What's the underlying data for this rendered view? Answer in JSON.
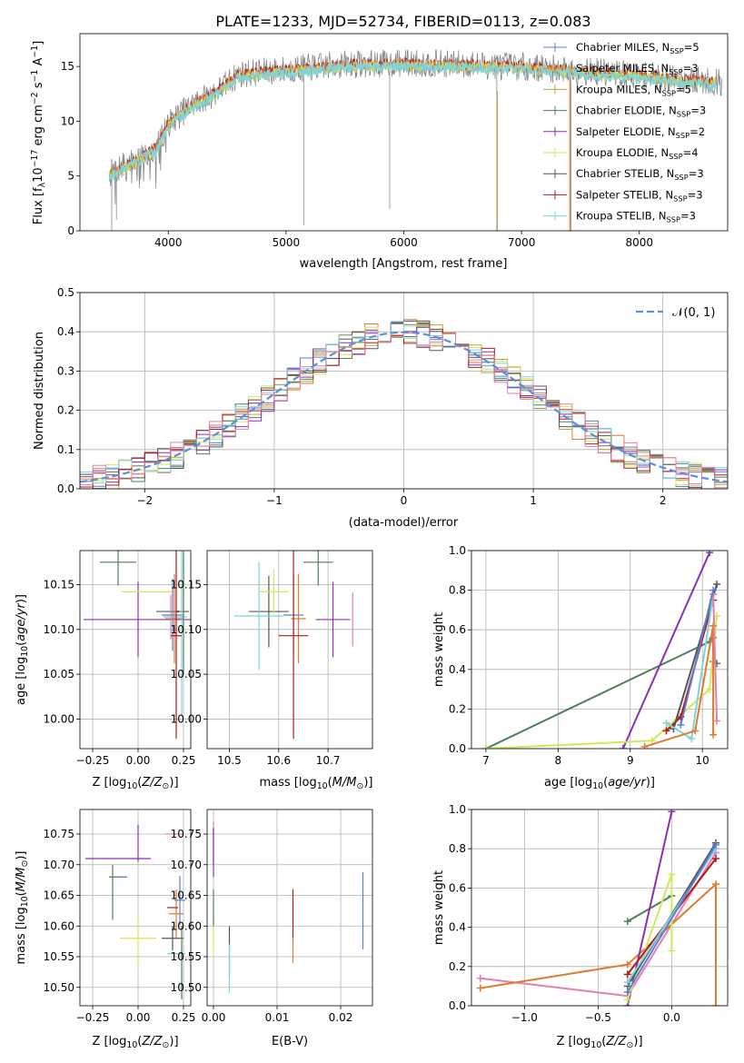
{
  "figure_title": "PLATE=1233, MJD=52734, FIBERID=0113, z=0.083",
  "colors": {
    "ch_miles": "#5b7fd2",
    "sa_miles": "#e07a2f",
    "kr_miles": "#b9a642",
    "ch_elodie": "#4e7f5a",
    "sa_elodie": "#8e2fb3",
    "kr_elodie": "#d0e85a",
    "ch_stelib": "#555555",
    "sa_stelib": "#b21a1a",
    "kr_stelib": "#7fd3dd",
    "pink": "#e57fb0",
    "gray": "#888888",
    "cyan": "#62c8d3",
    "gauss": "#5b8fd6",
    "grid": "#b0b0b0"
  },
  "chart_data": [
    {
      "type": "line",
      "title": "PLATE=1233, MJD=52734, FIBERID=0113, z=0.083",
      "xlabel": "wavelength [Angstrom, rest frame]",
      "ylabel": "Flux [f_λ10^-17 erg cm^-2 s^-1 A^-1]",
      "xlim": [
        3250,
        8750
      ],
      "ylim": [
        0,
        18
      ],
      "xticks": [
        4000,
        5000,
        6000,
        7000,
        8000
      ],
      "yticks": [
        0,
        5,
        10,
        15
      ],
      "grid": false,
      "legend_position": "right",
      "legend": [
        "Chabrier MILES, N_SSP=5",
        "Salpeter MILES, N_SSP=3",
        "Kroupa MILES, N_SSP=5",
        "Chabrier ELODIE, N_SSP=3",
        "Salpeter ELODIE, N_SSP=2",
        "Kroupa ELODIE, N_SSP=4",
        "Chabrier STELIB, N_SSP=3",
        "Salpeter STELIB, N_SSP=3",
        "Kroupa STELIB, N_SSP=3"
      ],
      "continuum": {
        "x": [
          3500,
          3700,
          3900,
          4000,
          4200,
          4400,
          4600,
          5000,
          5500,
          6000,
          6500,
          7000,
          7500,
          8000,
          8500,
          8700
        ],
        "y": [
          5.2,
          6.3,
          7.6,
          9.8,
          11.5,
          12.6,
          14.3,
          14.7,
          15.2,
          15.3,
          15.2,
          15.0,
          14.6,
          14.2,
          13.7,
          13.6
        ]
      }
    },
    {
      "type": "histogram",
      "xlabel": "(data-model)/error",
      "ylabel": "Normed distribution",
      "xlim": [
        -2.5,
        2.5
      ],
      "ylim": [
        0,
        0.5
      ],
      "xticks": [
        -2,
        -1,
        0,
        1,
        2
      ],
      "yticks": [
        0.0,
        0.1,
        0.2,
        0.3,
        0.4,
        0.5
      ],
      "grid": true,
      "legend_position": "top-right",
      "reference": {
        "name": "𝒩(0, 1)",
        "mu": 0,
        "sigma": 1
      },
      "bin_width": 0.1
    },
    {
      "type": "scatter",
      "xlabel": "Z [log10(Z/Z_⊙)]",
      "ylabel": "age  [log10(age/yr)]",
      "xlim": [
        -0.32,
        0.29
      ],
      "ylim": [
        9.967,
        10.188
      ],
      "xticks": [
        -0.25,
        0.0,
        0.25
      ],
      "yticks": [
        10.0,
        10.05,
        10.1,
        10.15
      ],
      "points": [
        {
          "x": -0.11,
          "y": 10.175,
          "xerr": 0.1,
          "yerr": 0.0,
          "color": "ch_elodie"
        },
        {
          "x": -0.11,
          "y": 10.175,
          "xerr": 0.0,
          "yerr": 0.026,
          "color": "ch_elodie"
        },
        {
          "x": 0.0,
          "y": 10.111,
          "xerr": 0.3,
          "yerr": 0.042,
          "color": "sa_elodie"
        },
        {
          "x": 0.05,
          "y": 10.142,
          "xerr": 0.14,
          "yerr": 0.0,
          "color": "kr_elodie"
        },
        {
          "x": 0.25,
          "y": 10.142,
          "xerr": 0.0,
          "yerr": 0.04,
          "color": "kr_elodie"
        },
        {
          "x": 0.19,
          "y": 10.12,
          "xerr": 0.09,
          "yerr": 0.0,
          "color": "ch_stelib"
        },
        {
          "x": 0.22,
          "y": 10.12,
          "xerr": 0.0,
          "yerr": 0.0,
          "color": "ch_stelib"
        },
        {
          "x": 0.19,
          "y": 10.116,
          "xerr": 0.06,
          "yerr": 0.04,
          "color": "ch_miles"
        },
        {
          "x": 0.18,
          "y": 10.114,
          "xerr": 0.04,
          "yerr": 0.025,
          "color": "pink"
        },
        {
          "x": 0.2,
          "y": 10.112,
          "xerr": 0.05,
          "yerr": 0.05,
          "color": "sa_miles"
        },
        {
          "x": 0.21,
          "y": 10.114,
          "xerr": 0.06,
          "yerr": 0.0,
          "color": "kr_stelib"
        },
        {
          "x": 0.24,
          "y": 10.114,
          "xerr": 0.0,
          "yerr": 0.11,
          "color": "kr_stelib"
        },
        {
          "x": 0.25,
          "y": 10.12,
          "xerr": 0.0,
          "yerr": 0.07,
          "color": "ch_elodie"
        },
        {
          "x": 0.21,
          "y": 10.093,
          "xerr": 0.03,
          "yerr": 0.0,
          "color": "sa_stelib"
        },
        {
          "x": 0.21,
          "y": 10.093,
          "xerr": 0.0,
          "yerr": 0.115,
          "color": "sa_stelib"
        }
      ]
    },
    {
      "type": "scatter",
      "xlabel": "mass [log10(M/M_⊙)]",
      "ylabel": "",
      "xlim": [
        10.455,
        10.79
      ],
      "ylim": [
        9.967,
        10.188
      ],
      "xticks": [
        10.5,
        10.6,
        10.7
      ],
      "yticks": [
        10.0,
        10.05,
        10.1,
        10.15
      ],
      "points": [
        {
          "x": 10.58,
          "y": 10.12,
          "xerr": 0.04,
          "yerr": 0.04,
          "color": "ch_stelib"
        },
        {
          "x": 10.56,
          "y": 10.115,
          "xerr": 0.05,
          "yerr": 0.06,
          "color": "kr_stelib"
        },
        {
          "x": 10.63,
          "y": 10.116,
          "xerr": 0.02,
          "yerr": 0.045,
          "color": "ch_miles"
        },
        {
          "x": 10.64,
          "y": 10.112,
          "xerr": 0.015,
          "yerr": 0.05,
          "color": "sa_miles"
        },
        {
          "x": 10.59,
          "y": 10.142,
          "xerr": 0.03,
          "yerr": 0.025,
          "color": "kr_elodie"
        },
        {
          "x": 10.68,
          "y": 10.175,
          "xerr": 0.03,
          "yerr": 0.026,
          "color": "ch_elodie"
        },
        {
          "x": 10.71,
          "y": 10.111,
          "xerr": 0.035,
          "yerr": 0.042,
          "color": "sa_elodie"
        },
        {
          "x": 10.75,
          "y": 10.111,
          "xerr": 0.0,
          "yerr": 0.03,
          "color": "pink"
        },
        {
          "x": 10.63,
          "y": 10.093,
          "xerr": 0.03,
          "yerr": 0.115,
          "color": "sa_stelib"
        }
      ]
    },
    {
      "type": "line",
      "xlabel": "age  [log10(age/yr)]",
      "ylabel": "mass weight",
      "xlim": [
        6.8,
        10.35
      ],
      "ylim": [
        0,
        1
      ],
      "xticks": [
        7,
        8,
        9,
        10
      ],
      "yticks": [
        0.0,
        0.2,
        0.4,
        0.6,
        0.8,
        1.0
      ],
      "grid": true,
      "series": [
        {
          "color": "ch_elodie",
          "points": [
            [
              7.0,
              0.0
            ],
            [
              10.1,
              0.54
            ],
            [
              10.15,
              0.56
            ],
            [
              10.15,
              0.44
            ],
            [
              10.2,
              0.43
            ]
          ]
        },
        {
          "color": "sa_elodie",
          "points": [
            [
              8.9,
              0.0
            ],
            [
              10.1,
              0.99
            ]
          ]
        },
        {
          "color": "kr_elodie",
          "points": [
            [
              7.0,
              0.0
            ],
            [
              9.3,
              0.04
            ],
            [
              10.1,
              0.3
            ],
            [
              10.2,
              0.67
            ]
          ]
        },
        {
          "color": "sa_stelib",
          "points": [
            [
              9.5,
              0.09
            ],
            [
              9.7,
              0.16
            ],
            [
              10.15,
              0.75
            ]
          ]
        },
        {
          "color": "ch_stelib",
          "points": [
            [
              9.6,
              0.1
            ],
            [
              10.2,
              0.83
            ]
          ]
        },
        {
          "color": "kr_stelib",
          "points": [
            [
              9.5,
              0.13
            ],
            [
              9.85,
              0.05
            ],
            [
              10.15,
              0.78
            ]
          ]
        },
        {
          "color": "sa_miles",
          "points": [
            [
              9.2,
              0.01
            ],
            [
              9.9,
              0.09
            ],
            [
              10.15,
              0.62
            ],
            [
              10.15,
              0.07
            ]
          ]
        },
        {
          "color": "pink",
          "points": [
            [
              10.2,
              0.14
            ],
            [
              10.15,
              0.78
            ]
          ]
        },
        {
          "color": "ch_miles",
          "points": [
            [
              9.7,
              0.12
            ],
            [
              10.15,
              0.8
            ]
          ]
        }
      ]
    },
    {
      "type": "scatter",
      "xlabel": "Z [log10(Z/Z_⊙)]",
      "ylabel": "mass [log10(M/M_⊙)]",
      "xlim": [
        -0.32,
        0.29
      ],
      "ylim": [
        10.47,
        10.79
      ],
      "xticks": [
        -0.25,
        0.0,
        0.25
      ],
      "yticks": [
        10.5,
        10.55,
        10.6,
        10.65,
        10.7,
        10.75
      ],
      "points": [
        {
          "x": -0.11,
          "y": 10.71,
          "xerr": 0.18,
          "yerr": 0.0,
          "color": "sa_elodie"
        },
        {
          "x": 0.0,
          "y": 10.735,
          "xerr": 0.0,
          "yerr": 0.03,
          "color": "sa_elodie"
        },
        {
          "x": -0.11,
          "y": 10.68,
          "xerr": 0.05,
          "yerr": 0.0,
          "color": "ch_elodie"
        },
        {
          "x": -0.14,
          "y": 10.655,
          "xerr": 0.0,
          "yerr": 0.045,
          "color": "ch_elodie"
        },
        {
          "x": 0.2,
          "y": 10.75,
          "xerr": 0.05,
          "yerr": 0.0,
          "color": "pink"
        },
        {
          "x": 0.0,
          "y": 10.58,
          "xerr": 0.1,
          "yerr": 0.04,
          "color": "kr_elodie"
        },
        {
          "x": 0.23,
          "y": 10.642,
          "xerr": 0.03,
          "yerr": 0.04,
          "color": "ch_miles"
        },
        {
          "x": 0.21,
          "y": 10.62,
          "xerr": 0.04,
          "yerr": 0.04,
          "color": "sa_miles"
        },
        {
          "x": 0.19,
          "y": 10.63,
          "xerr": 0.03,
          "yerr": 0.0,
          "color": "sa_stelib"
        },
        {
          "x": 0.19,
          "y": 10.58,
          "xerr": 0.06,
          "yerr": 0.02,
          "color": "ch_stelib"
        },
        {
          "x": 0.21,
          "y": 10.555,
          "xerr": 0.05,
          "yerr": 0.0,
          "color": "kr_stelib"
        },
        {
          "x": 0.24,
          "y": 10.54,
          "xerr": 0.0,
          "yerr": 0.06,
          "color": "ch_elodie"
        }
      ]
    },
    {
      "type": "scatter",
      "xlabel": "E(B-V)",
      "ylabel": "",
      "xlim": [
        -0.001,
        0.025
      ],
      "ylim": [
        10.47,
        10.79
      ],
      "xticks": [
        0.0,
        0.01,
        0.02
      ],
      "yticks": [
        10.5,
        10.55,
        10.6,
        10.65,
        10.7,
        10.75
      ],
      "points": [
        {
          "x": 0.0,
          "y": 10.735,
          "xerr": 0.0,
          "yerr": 0.035,
          "color": "pink"
        },
        {
          "x": 0.0,
          "y": 10.72,
          "xerr": 0.0,
          "yerr": 0.04,
          "color": "sa_elodie"
        },
        {
          "x": 0.0,
          "y": 10.58,
          "xerr": 0.0,
          "yerr": 0.03,
          "color": "kr_elodie"
        },
        {
          "x": 0.0,
          "y": 10.63,
          "xerr": 0.0,
          "yerr": 0.03,
          "color": "ch_elodie"
        },
        {
          "x": 0.0025,
          "y": 10.56,
          "xerr": 0.0,
          "yerr": 0.04,
          "color": "ch_stelib"
        },
        {
          "x": 0.0025,
          "y": 10.53,
          "xerr": 0.0,
          "yerr": 0.04,
          "color": "kr_stelib"
        },
        {
          "x": 0.0125,
          "y": 10.62,
          "xerr": 0.0,
          "yerr": 0.04,
          "color": "sa_stelib"
        },
        {
          "x": 0.0125,
          "y": 10.56,
          "xerr": 0.0,
          "yerr": 0.02,
          "color": "sa_miles"
        },
        {
          "x": 0.0235,
          "y": 10.625,
          "xerr": 0.0,
          "yerr": 0.063,
          "color": "ch_miles"
        }
      ]
    },
    {
      "type": "line",
      "xlabel": "Z [log10(Z/Z_⊙)]",
      "ylabel": "mass weight",
      "xlim": [
        -1.36,
        0.38
      ],
      "ylim": [
        0,
        1
      ],
      "xticks": [
        -1.0,
        -0.5,
        0.0
      ],
      "yticks": [
        0.0,
        0.2,
        0.4,
        0.6,
        0.8,
        1.0
      ],
      "grid": true,
      "series": [
        {
          "color": "pink",
          "points": [
            [
              -1.3,
              0.14
            ],
            [
              -0.3,
              0.05
            ],
            [
              0.3,
              0.78
            ]
          ]
        },
        {
          "color": "sa_miles",
          "points": [
            [
              -1.3,
              0.09
            ],
            [
              -0.3,
              0.21
            ],
            [
              0.3,
              0.62
            ],
            [
              0.3,
              0.0
            ]
          ]
        },
        {
          "color": "ch_elodie",
          "points": [
            [
              -0.3,
              0.43
            ],
            [
              0.0,
              0.56
            ]
          ]
        },
        {
          "color": "sa_elodie",
          "points": [
            [
              -0.3,
              0.0
            ],
            [
              0.0,
              0.99
            ]
          ]
        },
        {
          "color": "kr_elodie",
          "points": [
            [
              -0.3,
              0.03
            ],
            [
              0.0,
              0.67
            ],
            [
              0.0,
              0.28
            ]
          ]
        },
        {
          "color": "ch_stelib",
          "points": [
            [
              -0.3,
              0.1
            ],
            [
              0.3,
              0.83
            ]
          ]
        },
        {
          "color": "sa_stelib",
          "points": [
            [
              -0.3,
              0.16
            ],
            [
              0.3,
              0.75
            ]
          ]
        },
        {
          "color": "kr_stelib",
          "points": [
            [
              -0.3,
              0.12
            ],
            [
              0.3,
              0.8
            ]
          ]
        },
        {
          "color": "ch_miles",
          "points": [
            [
              -0.3,
              0.07
            ],
            [
              0.3,
              0.82
            ]
          ]
        }
      ]
    }
  ]
}
